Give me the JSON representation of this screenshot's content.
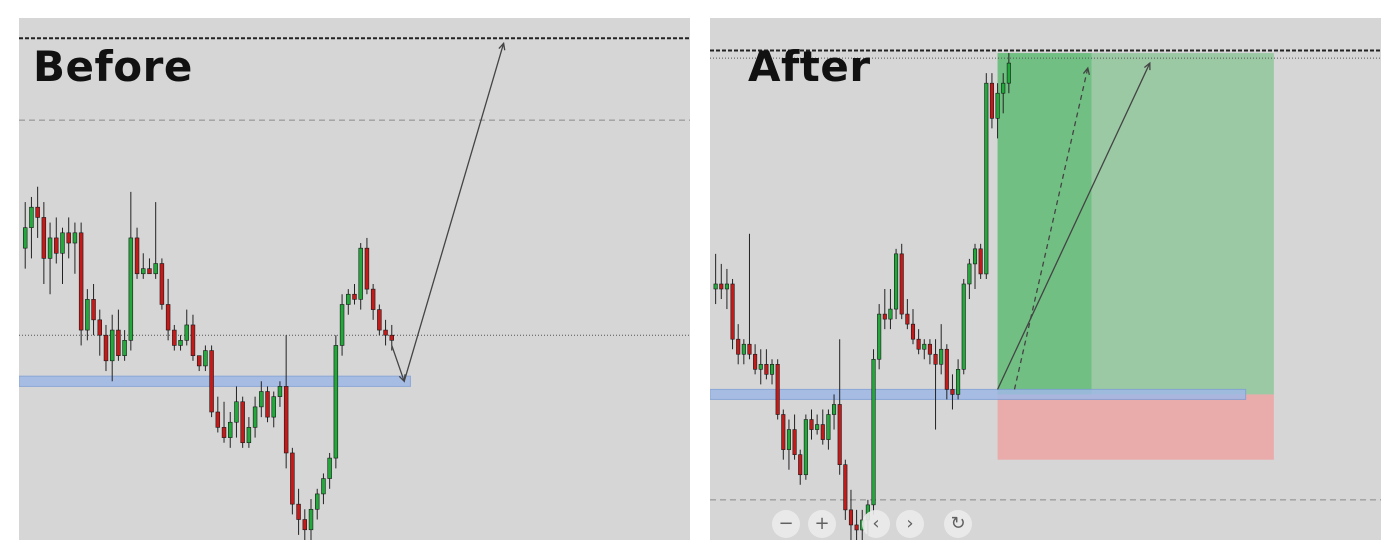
{
  "chart_data": [
    {
      "type": "candlestick",
      "title": "Before",
      "grid": false,
      "colors": {
        "up": "#22a83b",
        "down": "#c41a1a",
        "wick": "#222222",
        "support_zone": "#9fb8e6",
        "background": "#d6d6d6"
      },
      "price_range": [
        0,
        100
      ],
      "levels": [
        {
          "kind": "dashed",
          "price": 98
        },
        {
          "kind": "dashed",
          "price": 82
        },
        {
          "kind": "dotted",
          "price": 40
        },
        {
          "kind": "zone",
          "price_low": 30,
          "price_high": 32
        }
      ],
      "candles": [
        {
          "o": 57,
          "h": 66,
          "l": 53,
          "c": 61
        },
        {
          "o": 61,
          "h": 67,
          "l": 55,
          "c": 65
        },
        {
          "o": 65,
          "h": 69,
          "l": 59,
          "c": 63
        },
        {
          "o": 63,
          "h": 66,
          "l": 50,
          "c": 55
        },
        {
          "o": 55,
          "h": 62,
          "l": 48,
          "c": 59
        },
        {
          "o": 59,
          "h": 63,
          "l": 54,
          "c": 56
        },
        {
          "o": 56,
          "h": 61,
          "l": 50,
          "c": 60
        },
        {
          "o": 60,
          "h": 63,
          "l": 55,
          "c": 58
        },
        {
          "o": 58,
          "h": 62,
          "l": 52,
          "c": 60
        },
        {
          "o": 60,
          "h": 62,
          "l": 38,
          "c": 41
        },
        {
          "o": 41,
          "h": 49,
          "l": 39,
          "c": 47
        },
        {
          "o": 47,
          "h": 50,
          "l": 40,
          "c": 43
        },
        {
          "o": 43,
          "h": 45,
          "l": 36,
          "c": 40
        },
        {
          "o": 40,
          "h": 42,
          "l": 33,
          "c": 35
        },
        {
          "o": 35,
          "h": 44,
          "l": 31,
          "c": 41
        },
        {
          "o": 41,
          "h": 45,
          "l": 35,
          "c": 36
        },
        {
          "o": 36,
          "h": 41,
          "l": 35,
          "c": 39
        },
        {
          "o": 39,
          "h": 68,
          "l": 37,
          "c": 59
        },
        {
          "o": 59,
          "h": 61,
          "l": 51,
          "c": 52
        },
        {
          "o": 52,
          "h": 56,
          "l": 51,
          "c": 53
        },
        {
          "o": 53,
          "h": 55,
          "l": 52,
          "c": 52
        },
        {
          "o": 52,
          "h": 66,
          "l": 51,
          "c": 54
        },
        {
          "o": 54,
          "h": 55,
          "l": 45,
          "c": 46
        },
        {
          "o": 46,
          "h": 51,
          "l": 39,
          "c": 41
        },
        {
          "o": 41,
          "h": 42,
          "l": 37,
          "c": 38
        },
        {
          "o": 38,
          "h": 40,
          "l": 37,
          "c": 39
        },
        {
          "o": 39,
          "h": 45,
          "l": 38,
          "c": 42
        },
        {
          "o": 42,
          "h": 44,
          "l": 35,
          "c": 36
        },
        {
          "o": 36,
          "h": 36,
          "l": 33,
          "c": 34
        },
        {
          "o": 34,
          "h": 38,
          "l": 33,
          "c": 37
        },
        {
          "o": 37,
          "h": 38,
          "l": 24,
          "c": 25
        },
        {
          "o": 25,
          "h": 28,
          "l": 21,
          "c": 22
        },
        {
          "o": 22,
          "h": 27,
          "l": 19,
          "c": 20
        },
        {
          "o": 20,
          "h": 25,
          "l": 18,
          "c": 23
        },
        {
          "o": 23,
          "h": 30,
          "l": 20,
          "c": 27
        },
        {
          "o": 27,
          "h": 28,
          "l": 18,
          "c": 19
        },
        {
          "o": 19,
          "h": 24,
          "l": 18,
          "c": 22
        },
        {
          "o": 22,
          "h": 28,
          "l": 20,
          "c": 26
        },
        {
          "o": 26,
          "h": 31,
          "l": 24,
          "c": 29
        },
        {
          "o": 29,
          "h": 30,
          "l": 23,
          "c": 24
        },
        {
          "o": 24,
          "h": 29,
          "l": 22,
          "c": 28
        },
        {
          "o": 28,
          "h": 31,
          "l": 26,
          "c": 30
        },
        {
          "o": 30,
          "h": 40,
          "l": 14,
          "c": 17
        },
        {
          "o": 17,
          "h": 18,
          "l": 5,
          "c": 7
        },
        {
          "o": 7,
          "h": 10,
          "l": 1,
          "c": 4
        },
        {
          "o": 4,
          "h": 6,
          "l": 0,
          "c": 2
        },
        {
          "o": 2,
          "h": 8,
          "l": 0,
          "c": 6
        },
        {
          "o": 6,
          "h": 10,
          "l": 4,
          "c": 9
        },
        {
          "o": 9,
          "h": 13,
          "l": 7,
          "c": 12
        },
        {
          "o": 12,
          "h": 17,
          "l": 10,
          "c": 16
        },
        {
          "o": 16,
          "h": 40,
          "l": 14,
          "c": 38
        },
        {
          "o": 38,
          "h": 48,
          "l": 36,
          "c": 46
        },
        {
          "o": 46,
          "h": 49,
          "l": 44,
          "c": 48
        },
        {
          "o": 48,
          "h": 50,
          "l": 46,
          "c": 47
        },
        {
          "o": 47,
          "h": 58,
          "l": 45,
          "c": 57
        },
        {
          "o": 57,
          "h": 59,
          "l": 48,
          "c": 49
        },
        {
          "o": 49,
          "h": 50,
          "l": 43,
          "c": 45
        },
        {
          "o": 45,
          "h": 46,
          "l": 40,
          "c": 41
        },
        {
          "o": 41,
          "h": 43,
          "l": 38,
          "c": 40
        },
        {
          "o": 40,
          "h": 42,
          "l": 37,
          "c": 39
        }
      ],
      "arrows": [
        {
          "from": {
            "index": 59,
            "price": 38
          },
          "to": {
            "index": 61,
            "price": 31
          }
        },
        {
          "from": {
            "index": 61,
            "price": 31
          },
          "to": {
            "index": 77,
            "price": 97
          }
        }
      ],
      "index_range": [
        -1,
        107
      ]
    },
    {
      "type": "candlestick",
      "title": "After",
      "grid": false,
      "colors": {
        "up": "#22a83b",
        "down": "#c41a1a",
        "wick": "#222222",
        "support_zone": "#9fb8e6",
        "target_zone": "#6cc07c",
        "stop_zone": "#eca6a6",
        "background": "#d6d6d6"
      },
      "price_range": [
        0,
        100
      ],
      "levels": [
        {
          "kind": "dashed",
          "price": 97.5
        },
        {
          "kind": "dotted",
          "price": 96
        },
        {
          "kind": "dashed",
          "price": 8
        },
        {
          "kind": "zone",
          "price_low": 28,
          "price_high": 30
        }
      ],
      "position": {
        "entry": 29,
        "target": 97,
        "stop": 16,
        "start_index": 50,
        "end_index": 99
      },
      "candles": [
        {
          "o": 50,
          "h": 57,
          "l": 47,
          "c": 51
        },
        {
          "o": 51,
          "h": 55,
          "l": 48,
          "c": 50
        },
        {
          "o": 50,
          "h": 54,
          "l": 46,
          "c": 51
        },
        {
          "o": 51,
          "h": 52,
          "l": 38,
          "c": 40
        },
        {
          "o": 40,
          "h": 43,
          "l": 35,
          "c": 37
        },
        {
          "o": 37,
          "h": 40,
          "l": 35,
          "c": 39
        },
        {
          "o": 39,
          "h": 61,
          "l": 36,
          "c": 37
        },
        {
          "o": 37,
          "h": 39,
          "l": 33,
          "c": 34
        },
        {
          "o": 34,
          "h": 38,
          "l": 31,
          "c": 35
        },
        {
          "o": 35,
          "h": 38,
          "l": 32,
          "c": 33
        },
        {
          "o": 33,
          "h": 36,
          "l": 31,
          "c": 35
        },
        {
          "o": 35,
          "h": 36,
          "l": 24,
          "c": 25
        },
        {
          "o": 25,
          "h": 26,
          "l": 16,
          "c": 18
        },
        {
          "o": 18,
          "h": 24,
          "l": 14,
          "c": 22
        },
        {
          "o": 22,
          "h": 25,
          "l": 16,
          "c": 17
        },
        {
          "o": 17,
          "h": 18,
          "l": 11,
          "c": 13
        },
        {
          "o": 13,
          "h": 25,
          "l": 12,
          "c": 24
        },
        {
          "o": 24,
          "h": 26,
          "l": 20,
          "c": 22
        },
        {
          "o": 22,
          "h": 25,
          "l": 21,
          "c": 23
        },
        {
          "o": 23,
          "h": 26,
          "l": 19,
          "c": 20
        },
        {
          "o": 20,
          "h": 26,
          "l": 18,
          "c": 25
        },
        {
          "o": 25,
          "h": 29,
          "l": 22,
          "c": 27
        },
        {
          "o": 27,
          "h": 40,
          "l": 13,
          "c": 15
        },
        {
          "o": 15,
          "h": 16,
          "l": 4,
          "c": 6
        },
        {
          "o": 6,
          "h": 10,
          "l": 0,
          "c": 3
        },
        {
          "o": 3,
          "h": 6,
          "l": 0,
          "c": 2
        },
        {
          "o": 2,
          "h": 6,
          "l": 0,
          "c": 4
        },
        {
          "o": 4,
          "h": 8,
          "l": 1,
          "c": 7
        },
        {
          "o": 7,
          "h": 38,
          "l": 5,
          "c": 36
        },
        {
          "o": 36,
          "h": 47,
          "l": 34,
          "c": 45
        },
        {
          "o": 45,
          "h": 50,
          "l": 42,
          "c": 44
        },
        {
          "o": 44,
          "h": 50,
          "l": 42,
          "c": 46
        },
        {
          "o": 46,
          "h": 58,
          "l": 44,
          "c": 57
        },
        {
          "o": 57,
          "h": 59,
          "l": 44,
          "c": 45
        },
        {
          "o": 45,
          "h": 48,
          "l": 42,
          "c": 43
        },
        {
          "o": 43,
          "h": 46,
          "l": 39,
          "c": 40
        },
        {
          "o": 40,
          "h": 42,
          "l": 37,
          "c": 38
        },
        {
          "o": 38,
          "h": 40,
          "l": 36,
          "c": 39
        },
        {
          "o": 39,
          "h": 40,
          "l": 35,
          "c": 37
        },
        {
          "o": 37,
          "h": 40,
          "l": 22,
          "c": 35
        },
        {
          "o": 35,
          "h": 43,
          "l": 33,
          "c": 38
        },
        {
          "o": 38,
          "h": 39,
          "l": 28,
          "c": 30
        },
        {
          "o": 30,
          "h": 33,
          "l": 26,
          "c": 29
        },
        {
          "o": 29,
          "h": 36,
          "l": 28,
          "c": 34
        },
        {
          "o": 34,
          "h": 52,
          "l": 33,
          "c": 51
        },
        {
          "o": 51,
          "h": 56,
          "l": 48,
          "c": 55
        },
        {
          "o": 55,
          "h": 59,
          "l": 50,
          "c": 58
        },
        {
          "o": 58,
          "h": 59,
          "l": 52,
          "c": 53
        },
        {
          "o": 53,
          "h": 93,
          "l": 52,
          "c": 91
        },
        {
          "o": 91,
          "h": 93,
          "l": 82,
          "c": 84
        },
        {
          "o": 84,
          "h": 91,
          "l": 80,
          "c": 89
        },
        {
          "o": 89,
          "h": 93,
          "l": 85,
          "c": 91
        },
        {
          "o": 91,
          "h": 97,
          "l": 89,
          "c": 95
        }
      ],
      "arrows": [
        {
          "from": {
            "index": 50,
            "price": 30
          },
          "to": {
            "index": 77,
            "price": 95
          },
          "style": "solid"
        },
        {
          "from": {
            "index": 53,
            "price": 30
          },
          "to": {
            "index": 66,
            "price": 94
          },
          "style": "dashed"
        }
      ],
      "index_range": [
        -1,
        118
      ]
    }
  ],
  "controls": [
    {
      "label": "−",
      "icon": "zoom-out-icon"
    },
    {
      "label": "+",
      "icon": "zoom-in-icon"
    },
    {
      "label": "‹",
      "icon": "scroll-left-icon"
    },
    {
      "label": "›",
      "icon": "scroll-right-icon"
    },
    {
      "label": "↻",
      "icon": "reset-icon"
    }
  ]
}
